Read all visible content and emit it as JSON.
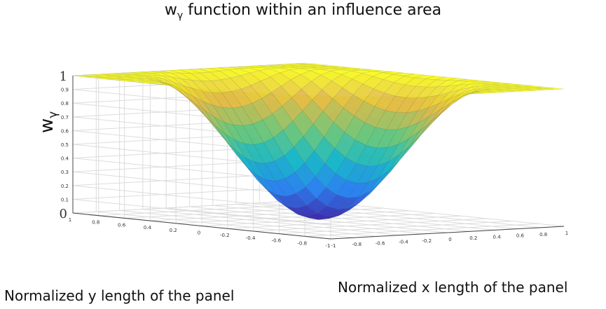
{
  "title_prefix": "w",
  "title_sub": "γ",
  "title_rest": " function within an influence area",
  "chart_data": {
    "type": "surface",
    "function": "w_gamma = 1 for radius r >= 1, else 0.5 - 0.5*cos(pi*r), r = sqrt(x^2+y^2)",
    "xlabel": "Normalized x length of the panel",
    "ylabel": "Normalized y length of the panel",
    "zlabel_main": "w",
    "zlabel_sub": "γ",
    "xlim": [
      -1,
      1
    ],
    "ylim": [
      -1,
      1
    ],
    "zlim": [
      0,
      1
    ],
    "x_ticks": [
      "-1",
      "-0.8",
      "-0.6",
      "-0.4",
      "-0.2",
      "0",
      "0.2",
      "0.4",
      "0.6",
      "0.8",
      "1"
    ],
    "y_ticks": [
      "1",
      "0.8",
      "0.6",
      "0.4",
      "0.2",
      "0",
      "-0.2",
      "-0.4",
      "-0.6",
      "-0.8",
      "-1"
    ],
    "z_ticks": [
      "0",
      "0.1",
      "0.2",
      "0.3",
      "0.4",
      "0.5",
      "0.6",
      "0.7",
      "0.8",
      "0.9",
      "1"
    ],
    "colormap": [
      "#3e26a8",
      "#2c7ff0",
      "#17b8ca",
      "#6cc87a",
      "#e0b84a",
      "#f9fb15"
    ],
    "grid": true
  }
}
